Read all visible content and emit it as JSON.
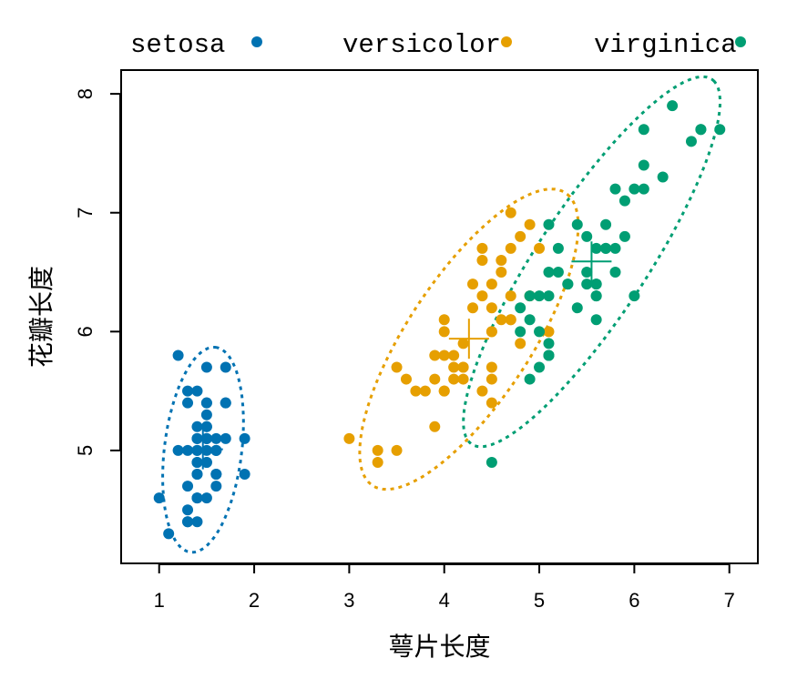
{
  "chart_data": {
    "type": "scatter",
    "xlabel": "萼片长度",
    "ylabel": "花瓣长度",
    "xlim": [
      0.6,
      7.3
    ],
    "ylim": [
      4.05,
      8.2
    ],
    "x_ticks": [
      1,
      2,
      3,
      4,
      5,
      6,
      7
    ],
    "y_ticks": [
      5,
      6,
      7,
      8
    ],
    "grid": false,
    "legend_position": "top, outside plot area",
    "series": [
      {
        "name": "setosa",
        "color": "#0072B2",
        "points": [
          [
            1.4,
            5.1
          ],
          [
            1.4,
            4.9
          ],
          [
            1.3,
            4.7
          ],
          [
            1.5,
            4.6
          ],
          [
            1.4,
            5.0
          ],
          [
            1.7,
            5.4
          ],
          [
            1.4,
            4.6
          ],
          [
            1.5,
            5.0
          ],
          [
            1.4,
            4.4
          ],
          [
            1.5,
            4.9
          ],
          [
            1.5,
            5.4
          ],
          [
            1.6,
            4.8
          ],
          [
            1.4,
            4.8
          ],
          [
            1.1,
            4.3
          ],
          [
            1.2,
            5.8
          ],
          [
            1.5,
            5.7
          ],
          [
            1.3,
            5.4
          ],
          [
            1.4,
            5.1
          ],
          [
            1.7,
            5.7
          ],
          [
            1.5,
            5.1
          ],
          [
            1.7,
            5.4
          ],
          [
            1.5,
            5.1
          ],
          [
            1.0,
            4.6
          ],
          [
            1.7,
            5.1
          ],
          [
            1.9,
            4.8
          ],
          [
            1.6,
            5.0
          ],
          [
            1.6,
            5.0
          ],
          [
            1.5,
            5.2
          ],
          [
            1.4,
            5.2
          ],
          [
            1.6,
            4.7
          ],
          [
            1.6,
            4.8
          ],
          [
            1.5,
            5.4
          ],
          [
            1.5,
            5.2
          ],
          [
            1.4,
            5.5
          ],
          [
            1.5,
            4.9
          ],
          [
            1.2,
            5.0
          ],
          [
            1.3,
            5.5
          ],
          [
            1.4,
            4.9
          ],
          [
            1.3,
            4.4
          ],
          [
            1.5,
            5.1
          ],
          [
            1.3,
            5.0
          ],
          [
            1.3,
            4.5
          ],
          [
            1.3,
            4.4
          ],
          [
            1.6,
            5.0
          ],
          [
            1.9,
            5.1
          ],
          [
            1.4,
            4.8
          ],
          [
            1.6,
            5.1
          ],
          [
            1.4,
            4.6
          ],
          [
            1.5,
            5.3
          ],
          [
            1.4,
            5.0
          ]
        ],
        "center": [
          1.46,
          5.01
        ]
      },
      {
        "name": "versicolor",
        "color": "#E69F00",
        "points": [
          [
            4.7,
            7.0
          ],
          [
            4.5,
            6.4
          ],
          [
            4.9,
            6.9
          ],
          [
            4.0,
            5.5
          ],
          [
            4.6,
            6.5
          ],
          [
            4.5,
            5.7
          ],
          [
            4.7,
            6.3
          ],
          [
            3.3,
            4.9
          ],
          [
            4.6,
            6.6
          ],
          [
            3.9,
            5.2
          ],
          [
            3.5,
            5.0
          ],
          [
            4.2,
            5.9
          ],
          [
            4.0,
            6.0
          ],
          [
            4.7,
            6.1
          ],
          [
            3.6,
            5.6
          ],
          [
            4.4,
            6.7
          ],
          [
            4.5,
            5.6
          ],
          [
            4.1,
            5.8
          ],
          [
            4.5,
            6.2
          ],
          [
            3.9,
            5.6
          ],
          [
            4.8,
            5.9
          ],
          [
            4.0,
            6.1
          ],
          [
            4.9,
            6.3
          ],
          [
            4.7,
            6.1
          ],
          [
            4.3,
            6.4
          ],
          [
            4.4,
            6.6
          ],
          [
            4.8,
            6.8
          ],
          [
            5.0,
            6.7
          ],
          [
            4.5,
            6.0
          ],
          [
            3.5,
            5.7
          ],
          [
            3.8,
            5.5
          ],
          [
            3.7,
            5.5
          ],
          [
            3.9,
            5.8
          ],
          [
            5.1,
            6.0
          ],
          [
            4.5,
            5.4
          ],
          [
            4.5,
            6.0
          ],
          [
            4.7,
            6.7
          ],
          [
            4.4,
            6.3
          ],
          [
            4.1,
            5.6
          ],
          [
            4.0,
            5.5
          ],
          [
            4.4,
            5.5
          ],
          [
            4.6,
            6.1
          ],
          [
            4.0,
            5.8
          ],
          [
            3.3,
            5.0
          ],
          [
            4.2,
            5.6
          ],
          [
            4.2,
            5.7
          ],
          [
            4.2,
            5.7
          ],
          [
            4.3,
            6.2
          ],
          [
            3.0,
            5.1
          ],
          [
            4.1,
            5.7
          ]
        ],
        "center": [
          4.26,
          5.94
        ]
      },
      {
        "name": "virginica",
        "color": "#009E73",
        "points": [
          [
            6.0,
            6.3
          ],
          [
            5.1,
            5.8
          ],
          [
            5.9,
            7.1
          ],
          [
            5.6,
            6.3
          ],
          [
            5.8,
            6.5
          ],
          [
            6.6,
            7.6
          ],
          [
            4.5,
            4.9
          ],
          [
            6.3,
            7.3
          ],
          [
            5.8,
            6.7
          ],
          [
            6.1,
            7.2
          ],
          [
            5.1,
            6.5
          ],
          [
            5.3,
            6.4
          ],
          [
            5.5,
            6.8
          ],
          [
            5.0,
            5.7
          ],
          [
            5.1,
            5.8
          ],
          [
            5.3,
            6.4
          ],
          [
            5.5,
            6.5
          ],
          [
            6.7,
            7.7
          ],
          [
            6.9,
            7.7
          ],
          [
            5.0,
            6.0
          ],
          [
            5.7,
            6.9
          ],
          [
            4.9,
            5.6
          ],
          [
            6.7,
            7.7
          ],
          [
            4.9,
            6.3
          ],
          [
            5.7,
            6.7
          ],
          [
            6.0,
            7.2
          ],
          [
            4.8,
            6.2
          ],
          [
            4.9,
            6.1
          ],
          [
            5.6,
            6.4
          ],
          [
            5.8,
            7.2
          ],
          [
            6.1,
            7.4
          ],
          [
            6.4,
            7.9
          ],
          [
            5.6,
            6.4
          ],
          [
            5.1,
            6.3
          ],
          [
            5.6,
            6.1
          ],
          [
            6.1,
            7.7
          ],
          [
            5.6,
            6.3
          ],
          [
            5.5,
            6.4
          ],
          [
            4.8,
            6.0
          ],
          [
            5.4,
            6.9
          ],
          [
            5.6,
            6.7
          ],
          [
            5.1,
            6.9
          ],
          [
            5.1,
            5.8
          ],
          [
            5.9,
            6.8
          ],
          [
            5.7,
            6.7
          ],
          [
            5.2,
            6.7
          ],
          [
            5.0,
            6.3
          ],
          [
            5.2,
            6.5
          ],
          [
            5.4,
            6.2
          ],
          [
            5.1,
            5.9
          ]
        ],
        "center": [
          5.55,
          6.59
        ]
      }
    ]
  }
}
